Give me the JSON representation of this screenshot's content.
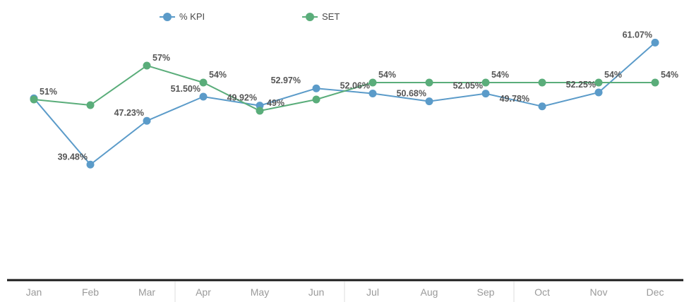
{
  "chart_data": {
    "type": "line",
    "categories": [
      "Jan",
      "Feb",
      "Mar",
      "Apr",
      "May",
      "Jun",
      "Jul",
      "Aug",
      "Sep",
      "Oct",
      "Nov",
      "Dec"
    ],
    "series": [
      {
        "name": "% KPI",
        "color": "#5b9bc9",
        "values": [
          51.2,
          39.48,
          47.23,
          51.5,
          49.92,
          52.97,
          52.06,
          50.68,
          52.05,
          49.78,
          52.25,
          61.07
        ],
        "labels": [
          "",
          "39.48%",
          "47.23%",
          "51.50%",
          "49.92%",
          "52.97%",
          "52.06%",
          "50.68%",
          "52.05%",
          "49.78%",
          "52.25%",
          "61.07%"
        ]
      },
      {
        "name": "SET",
        "color": "#5aad7a",
        "values": [
          51,
          50,
          57,
          54,
          49,
          51,
          54,
          54,
          54,
          54,
          54,
          54
        ],
        "labels": [
          "51%",
          "",
          "57%",
          "54%",
          "49%",
          "",
          "54%",
          "",
          "54%",
          "",
          "54%",
          "54%"
        ]
      }
    ],
    "title": "",
    "xlabel": "",
    "ylabel": "",
    "grid": false,
    "legend_position": "top-left"
  }
}
